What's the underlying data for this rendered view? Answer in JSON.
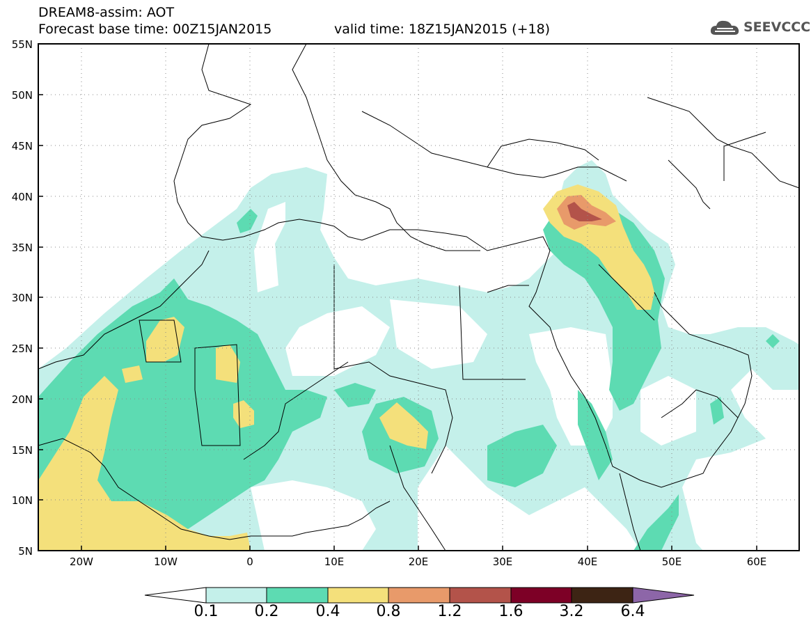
{
  "title": {
    "line1": "DREAM8-assim: AOT",
    "line2_left": "Forecast base time: 00Z15JAN2015",
    "line2_right": "valid time: 18Z15JAN2015 (+18)"
  },
  "logo": {
    "text": "SEEVCCC",
    "icon": "cloud-icon"
  },
  "map": {
    "lon_ticks": [
      "20W",
      "10W",
      "0",
      "10E",
      "20E",
      "30E",
      "40E",
      "50E",
      "60E"
    ],
    "lat_ticks": [
      "55N",
      "50N",
      "45N",
      "40N",
      "35N",
      "30N",
      "25N",
      "20N",
      "15N",
      "10N",
      "5N"
    ],
    "lon_range": [
      -25,
      65
    ],
    "lat_range": [
      5,
      55
    ],
    "gridlines": "dotted"
  },
  "colorbar": {
    "levels": [
      "0.1",
      "0.2",
      "0.4",
      "0.8",
      "1.2",
      "1.6",
      "3.2",
      "6.4"
    ],
    "colors": [
      "#c4f0ea",
      "#5ddbb2",
      "#f4e07b",
      "#e89a6a",
      "#b3534a",
      "#7d0026",
      "#3d2414",
      "#8d66a8"
    ]
  }
}
